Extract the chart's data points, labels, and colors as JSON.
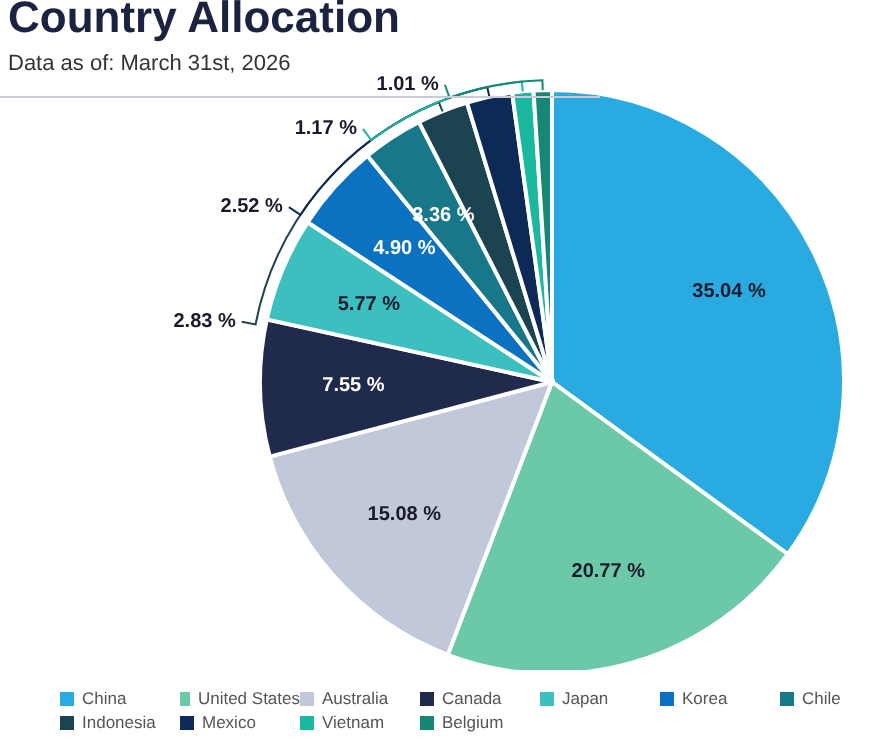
{
  "chart_data": {
    "type": "pie",
    "title": "Country Allocation",
    "subtitle": "Data as of: March 31st, 2026",
    "categories": [
      "China",
      "United States",
      "Australia",
      "Canada",
      "Japan",
      "Korea",
      "Chile",
      "Indonesia",
      "Mexico",
      "Vietnam",
      "Belgium"
    ],
    "values": [
      35.04,
      20.77,
      15.08,
      7.55,
      5.77,
      4.9,
      3.36,
      2.83,
      2.52,
      1.17,
      1.01
    ],
    "value_labels": [
      "35.04 %",
      "20.77 %",
      "15.08 %",
      "7.55 %",
      "5.77 %",
      "4.90 %",
      "3.36 %",
      "2.83 %",
      "2.52 %",
      "1.17 %",
      "1.01 %"
    ],
    "colors": [
      "#29abe2",
      "#6cc9a8",
      "#c0c8da",
      "#1f2a4d",
      "#3cbfbf",
      "#0a72c0",
      "#18788a",
      "#1b4350",
      "#0c2a55",
      "#1bb8a0",
      "#168775"
    ],
    "legend": "bottom"
  }
}
